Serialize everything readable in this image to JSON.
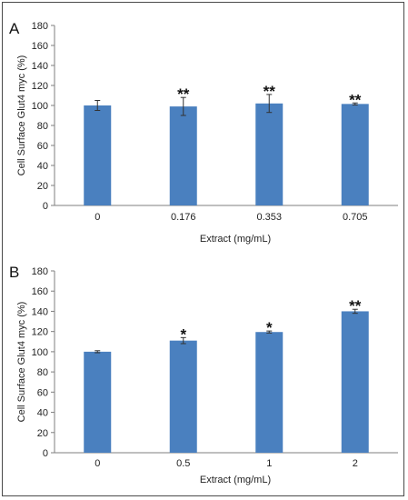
{
  "colors": {
    "bar": "#4a80bf",
    "axis": "#7f7f7f",
    "error": "#333333",
    "frame": "#4a4a4a"
  },
  "chart_data": [
    {
      "type": "bar",
      "panel_label": "A",
      "categories": [
        "0",
        "0.176",
        "0.353",
        "0.705"
      ],
      "values": [
        100,
        99,
        102,
        101.5
      ],
      "errors": [
        5,
        9,
        9,
        1
      ],
      "significance": [
        "",
        "**",
        "**",
        "**"
      ],
      "xlabel": "Extract  (mg/mL)",
      "ylabel": "Cell Surface Glut4 myc (%)",
      "ylim": [
        0,
        180
      ],
      "yticks": [
        0,
        20,
        40,
        60,
        80,
        100,
        120,
        140,
        160,
        180
      ],
      "grid": false,
      "legend": "none"
    },
    {
      "type": "bar",
      "panel_label": "B",
      "categories": [
        "0",
        "0.5",
        "1",
        "2"
      ],
      "values": [
        100,
        111,
        119.5,
        140
      ],
      "errors": [
        1,
        3,
        1,
        2
      ],
      "significance": [
        "",
        "*",
        "*",
        "**"
      ],
      "xlabel": "Extract  (mg/mL)",
      "ylabel": "Cell Surface Glut4 myc (%)",
      "ylim": [
        0,
        180
      ],
      "yticks": [
        0,
        20,
        40,
        60,
        80,
        100,
        120,
        140,
        160,
        180
      ],
      "grid": false,
      "legend": "none"
    }
  ]
}
